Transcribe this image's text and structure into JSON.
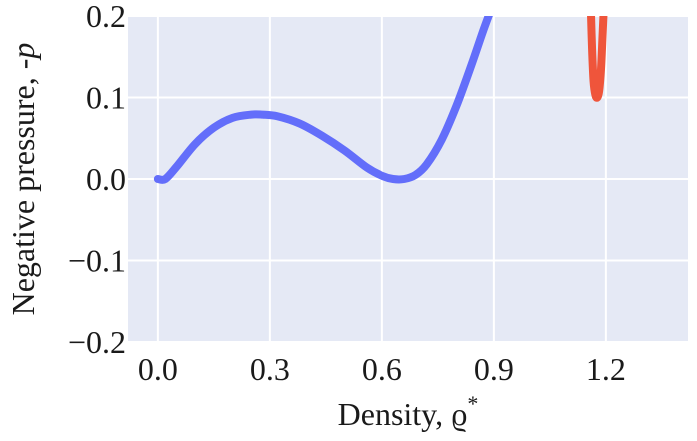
{
  "chart_data": {
    "type": "line",
    "xlabel": "Density, ϱ",
    "xlabel_sup": "*",
    "ylabel": "Negative pressure, -",
    "ylabel_italic": "p",
    "xlim": [
      -0.08,
      1.42
    ],
    "ylim": [
      -0.2,
      0.2
    ],
    "xticks": [
      0.0,
      0.3,
      0.6,
      0.9,
      1.2
    ],
    "xtick_labels": [
      "0.0",
      "0.3",
      "0.6",
      "0.9",
      "1.2"
    ],
    "yticks": [
      -0.2,
      -0.1,
      0.0,
      0.1,
      0.2
    ],
    "ytick_labels": [
      "−0.2",
      "−0.1",
      "0.0",
      "0.1",
      "0.2"
    ],
    "grid": true,
    "background": "#e5e9f5",
    "series": [
      {
        "color": "#636efa",
        "x": [
          0.0,
          0.02,
          0.05,
          0.1,
          0.15,
          0.2,
          0.25,
          0.28,
          0.32,
          0.38,
          0.44,
          0.5,
          0.56,
          0.6,
          0.63,
          0.66,
          0.69,
          0.72,
          0.76,
          0.8,
          0.84,
          0.87,
          0.89
        ],
        "y": [
          0.0,
          0.0,
          0.015,
          0.043,
          0.063,
          0.075,
          0.079,
          0.079,
          0.077,
          0.068,
          0.053,
          0.035,
          0.014,
          0.004,
          0.0,
          0.0,
          0.005,
          0.018,
          0.048,
          0.09,
          0.14,
          0.18,
          0.205
        ]
      },
      {
        "color": "#ef553b",
        "x": [
          1.16,
          1.163,
          1.167,
          1.172,
          1.177,
          1.182,
          1.187,
          1.191,
          1.194
        ],
        "y": [
          0.205,
          0.16,
          0.12,
          0.103,
          0.1,
          0.108,
          0.135,
          0.175,
          0.205
        ]
      }
    ]
  }
}
